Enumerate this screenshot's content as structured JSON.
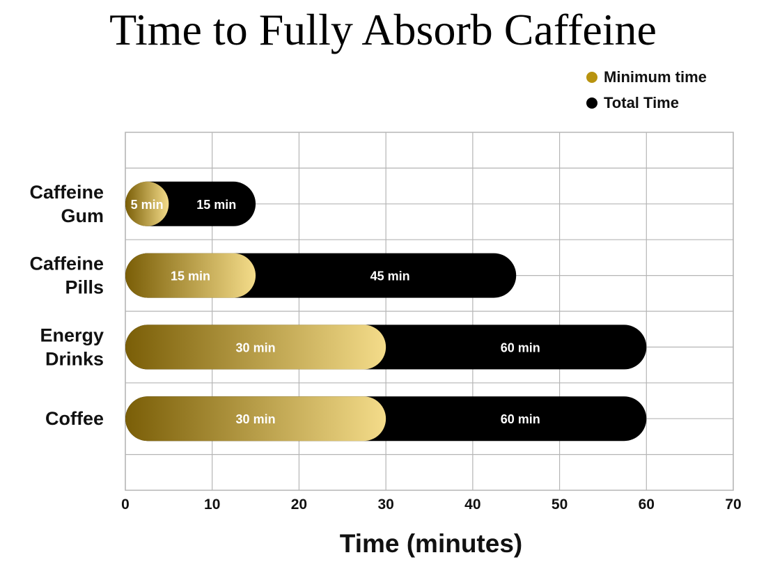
{
  "colors": {
    "min_dark": "#7a5e07",
    "min_light": "#f4dc8a",
    "total": "#000000",
    "legend_min": "#b8930f",
    "grid": "#b5b5b5"
  },
  "chart_data": {
    "type": "bar",
    "orientation": "horizontal",
    "title": "Time to Fully Absorb Caffeine",
    "xlabel": "Time (minutes)",
    "ylabel": "",
    "xlim": [
      0,
      70
    ],
    "xticks": [
      0,
      10,
      20,
      30,
      40,
      50,
      60,
      70
    ],
    "grid": true,
    "legend_position": "top-right",
    "categories": [
      [
        "Caffeine",
        "Gum"
      ],
      [
        "Caffeine",
        "Pills"
      ],
      [
        "Energy",
        "Drinks"
      ],
      [
        "Coffee"
      ]
    ],
    "series": [
      {
        "name": "Minimum time",
        "values": [
          5,
          15,
          30,
          30
        ],
        "labels": [
          "5 min",
          "15 min",
          "30 min",
          "30 min"
        ]
      },
      {
        "name": "Total Time",
        "values": [
          15,
          45,
          60,
          60
        ],
        "labels": [
          "15 min",
          "45 min",
          "60 min",
          "60 min"
        ]
      }
    ]
  }
}
